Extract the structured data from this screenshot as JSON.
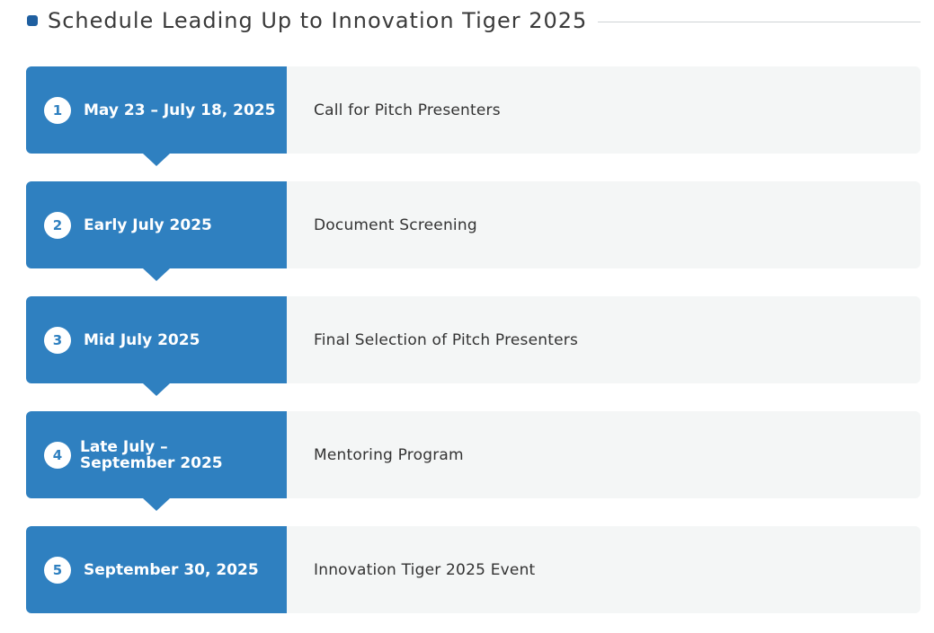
{
  "header": {
    "title": "Schedule Leading Up to Innovation Tiger 2025"
  },
  "steps": [
    {
      "number": "1",
      "date": "May 23 – July 18, 2025",
      "description": "Call for Pitch Presenters"
    },
    {
      "number": "2",
      "date": "Early July 2025",
      "description": "Document Screening"
    },
    {
      "number": "3",
      "date": "Mid July 2025",
      "description": "Final Selection of Pitch Presenters"
    },
    {
      "number": "4",
      "date": "Late July – September 2025",
      "description": "Mentoring Program"
    },
    {
      "number": "5",
      "date": "September 30, 2025",
      "description": "Innovation Tiger 2025 Event"
    }
  ],
  "colors": {
    "accent": "#2f80c0",
    "bullet": "#1f5fa0",
    "row_background": "#f4f6f6",
    "text": "#333333"
  }
}
